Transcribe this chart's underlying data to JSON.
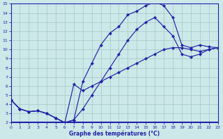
{
  "title": "Graphe des températures (°C)",
  "bg_color": "#cce8e8",
  "grid_color": "#aacccc",
  "line_color": "#2222aa",
  "x_min": 0,
  "x_max": 23,
  "y_min": 2,
  "y_max": 15,
  "curve1_x": [
    0,
    1,
    2,
    3,
    4,
    5,
    6,
    7,
    8,
    9,
    10,
    11,
    12,
    13,
    14,
    15,
    16,
    17,
    18,
    19,
    20,
    21,
    22,
    23
  ],
  "curve1_y": [
    4.5,
    3.5,
    3.2,
    3.3,
    3.0,
    2.5,
    2.0,
    2.3,
    6.5,
    8.5,
    10.5,
    11.8,
    12.5,
    13.8,
    14.2,
    14.8,
    15.2,
    14.8,
    13.5,
    10.5,
    10.2,
    10.5,
    10.3,
    10.2
  ],
  "curve2_x": [
    0,
    1,
    2,
    3,
    4,
    5,
    6,
    7,
    8,
    9,
    10,
    11,
    12,
    13,
    14,
    15,
    16,
    17,
    18,
    19,
    20,
    21,
    22,
    23
  ],
  "curve2_y": [
    4.5,
    3.5,
    3.2,
    3.3,
    3.0,
    2.5,
    2.0,
    2.3,
    3.5,
    5.0,
    6.5,
    8.0,
    9.5,
    11.0,
    12.2,
    13.0,
    13.5,
    12.5,
    11.5,
    9.5,
    9.2,
    9.5,
    10.0,
    10.2
  ],
  "curve3_x": [
    0,
    1,
    2,
    3,
    4,
    5,
    6,
    7,
    8,
    9,
    10,
    11,
    12,
    13,
    14,
    15,
    16,
    17,
    18,
    19,
    20,
    21,
    22,
    23
  ],
  "curve3_y": [
    4.5,
    3.5,
    3.2,
    3.3,
    3.0,
    2.5,
    2.0,
    6.2,
    5.5,
    6.0,
    6.5,
    7.0,
    7.5,
    8.0,
    8.5,
    9.0,
    9.5,
    10.0,
    10.2,
    10.2,
    10.0,
    9.8,
    10.0,
    10.2
  ]
}
